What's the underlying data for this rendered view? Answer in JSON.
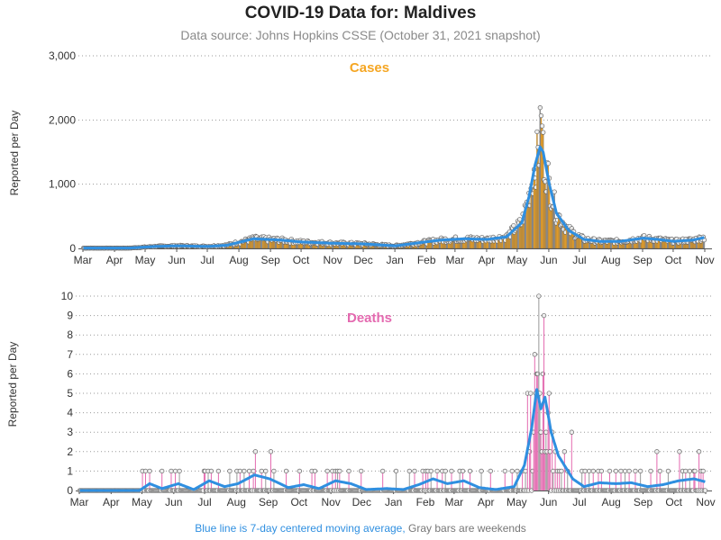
{
  "title": "COVID-19 Data for: Maldives",
  "subtitle": "Data source: Johns Hopkins CSSE (October 31, 2021 snapshot)",
  "footnote": {
    "blue": "Blue line is 7-day centered moving average,",
    "gray": "Gray bars are weekends"
  },
  "colors": {
    "cases": "#f5a623",
    "deaths": "#e46ab0",
    "moving_average": "#2f8fe0",
    "weekend": "#999999",
    "grid": "#9a9a9a"
  },
  "chart_data": [
    {
      "type": "bar",
      "name": "cases",
      "title": "Cases",
      "ylabel": "Reported per Day",
      "ylim": [
        0,
        3000
      ],
      "yticks": [
        0,
        1000,
        2000,
        3000
      ],
      "ytick_labels": [
        "0",
        "1,000",
        "2,000",
        "3,000"
      ],
      "xtick_labels": [
        "Mar",
        "Apr",
        "May",
        "Jun",
        "Jul",
        "Aug",
        "Sep",
        "Oct",
        "Nov",
        "Dec",
        "Jan",
        "Feb",
        "Mar",
        "Apr",
        "May",
        "Jun",
        "Jul",
        "Aug",
        "Sep",
        "Oct",
        "Nov"
      ],
      "x_range": [
        "2020-03-01",
        "2021-10-31"
      ],
      "grid": "horizontal-dotted",
      "moving_average_anchors": [
        [
          "2020-03-01",
          5
        ],
        [
          "2020-04-15",
          5
        ],
        [
          "2020-05-10",
          30
        ],
        [
          "2020-06-01",
          40
        ],
        [
          "2020-07-01",
          30
        ],
        [
          "2020-07-20",
          50
        ],
        [
          "2020-08-15",
          150
        ],
        [
          "2020-09-10",
          130
        ],
        [
          "2020-10-01",
          100
        ],
        [
          "2020-11-01",
          80
        ],
        [
          "2020-12-01",
          70
        ],
        [
          "2021-01-01",
          40
        ],
        [
          "2021-01-25",
          90
        ],
        [
          "2021-02-15",
          130
        ],
        [
          "2021-03-10",
          150
        ],
        [
          "2021-04-01",
          140
        ],
        [
          "2021-04-20",
          180
        ],
        [
          "2021-05-05",
          400
        ],
        [
          "2021-05-12",
          800
        ],
        [
          "2021-05-18",
          1300
        ],
        [
          "2021-05-23",
          1580
        ],
        [
          "2021-05-26",
          1500
        ],
        [
          "2021-06-01",
          1000
        ],
        [
          "2021-06-08",
          550
        ],
        [
          "2021-06-20",
          280
        ],
        [
          "2021-07-05",
          140
        ],
        [
          "2021-07-20",
          110
        ],
        [
          "2021-08-10",
          110
        ],
        [
          "2021-09-01",
          160
        ],
        [
          "2021-09-15",
          140
        ],
        [
          "2021-10-01",
          110
        ],
        [
          "2021-10-20",
          130
        ],
        [
          "2021-10-31",
          170
        ]
      ]
    },
    {
      "type": "bar",
      "name": "deaths",
      "title": "Deaths",
      "ylabel": "Reported per Day",
      "ylim": [
        0,
        10
      ],
      "yticks": [
        0,
        1,
        2,
        3,
        4,
        5,
        6,
        7,
        8,
        9,
        10
      ],
      "ytick_labels": [
        "0",
        "1",
        "2",
        "3",
        "4",
        "5",
        "6",
        "7",
        "8",
        "9",
        "10"
      ],
      "xtick_labels": [
        "Mar",
        "Apr",
        "May",
        "Jun",
        "Jul",
        "Aug",
        "Sep",
        "Oct",
        "Nov",
        "Dec",
        "Jan",
        "Feb",
        "Mar",
        "Apr",
        "May",
        "Jun",
        "Jul",
        "Aug",
        "Sep",
        "Oct",
        "Nov"
      ],
      "x_range": [
        "2020-03-01",
        "2021-10-31"
      ],
      "grid": "horizontal-dotted",
      "daily_nonzero": [
        [
          "2020-05-01",
          1
        ],
        [
          "2020-05-04",
          1
        ],
        [
          "2020-05-08",
          1
        ],
        [
          "2020-05-20",
          1
        ],
        [
          "2020-05-29",
          1
        ],
        [
          "2020-06-02",
          1
        ],
        [
          "2020-06-06",
          1
        ],
        [
          "2020-06-30",
          1
        ],
        [
          "2020-07-01",
          1
        ],
        [
          "2020-07-04",
          1
        ],
        [
          "2020-07-07",
          1
        ],
        [
          "2020-07-14",
          1
        ],
        [
          "2020-07-25",
          1
        ],
        [
          "2020-08-01",
          1
        ],
        [
          "2020-08-04",
          1
        ],
        [
          "2020-08-08",
          1
        ],
        [
          "2020-08-13",
          1
        ],
        [
          "2020-08-17",
          1
        ],
        [
          "2020-08-19",
          2
        ],
        [
          "2020-08-25",
          1
        ],
        [
          "2020-08-29",
          1
        ],
        [
          "2020-09-03",
          2
        ],
        [
          "2020-09-06",
          1
        ],
        [
          "2020-09-18",
          1
        ],
        [
          "2020-10-01",
          1
        ],
        [
          "2020-10-13",
          1
        ],
        [
          "2020-10-16",
          1
        ],
        [
          "2020-10-28",
          1
        ],
        [
          "2020-11-02",
          1
        ],
        [
          "2020-11-05",
          1
        ],
        [
          "2020-11-07",
          1
        ],
        [
          "2020-11-09",
          1
        ],
        [
          "2020-11-18",
          1
        ],
        [
          "2020-11-30",
          1
        ],
        [
          "2020-12-21",
          1
        ],
        [
          "2021-01-03",
          1
        ],
        [
          "2021-01-16",
          1
        ],
        [
          "2021-01-21",
          1
        ],
        [
          "2021-01-29",
          1
        ],
        [
          "2021-02-01",
          1
        ],
        [
          "2021-02-03",
          1
        ],
        [
          "2021-02-06",
          1
        ],
        [
          "2021-02-12",
          1
        ],
        [
          "2021-02-17",
          1
        ],
        [
          "2021-02-20",
          1
        ],
        [
          "2021-02-26",
          1
        ],
        [
          "2021-03-06",
          1
        ],
        [
          "2021-03-09",
          1
        ],
        [
          "2021-03-16",
          1
        ],
        [
          "2021-03-27",
          1
        ],
        [
          "2021-04-05",
          1
        ],
        [
          "2021-04-19",
          1
        ],
        [
          "2021-04-26",
          1
        ],
        [
          "2021-05-01",
          1
        ],
        [
          "2021-05-06",
          1
        ],
        [
          "2021-05-09",
          1
        ],
        [
          "2021-05-11",
          5
        ],
        [
          "2021-05-13",
          2
        ],
        [
          "2021-05-14",
          5
        ],
        [
          "2021-05-16",
          1
        ],
        [
          "2021-05-17",
          3
        ],
        [
          "2021-05-18",
          7
        ],
        [
          "2021-05-19",
          5
        ],
        [
          "2021-05-20",
          6
        ],
        [
          "2021-05-21",
          6
        ],
        [
          "2021-05-22",
          10
        ],
        [
          "2021-05-23",
          5
        ],
        [
          "2021-05-24",
          3
        ],
        [
          "2021-05-25",
          2
        ],
        [
          "2021-05-26",
          6
        ],
        [
          "2021-05-27",
          9
        ],
        [
          "2021-05-28",
          2
        ],
        [
          "2021-05-29",
          3
        ],
        [
          "2021-05-30",
          2
        ],
        [
          "2021-05-31",
          4
        ],
        [
          "2021-06-01",
          5
        ],
        [
          "2021-06-02",
          2
        ],
        [
          "2021-06-04",
          3
        ],
        [
          "2021-06-05",
          1
        ],
        [
          "2021-06-07",
          2
        ],
        [
          "2021-06-09",
          1
        ],
        [
          "2021-06-11",
          1
        ],
        [
          "2021-06-13",
          1
        ],
        [
          "2021-06-16",
          2
        ],
        [
          "2021-06-19",
          1
        ],
        [
          "2021-06-23",
          3
        ],
        [
          "2021-07-03",
          1
        ],
        [
          "2021-07-06",
          1
        ],
        [
          "2021-07-10",
          1
        ],
        [
          "2021-07-14",
          1
        ],
        [
          "2021-07-19",
          1
        ],
        [
          "2021-07-22",
          1
        ],
        [
          "2021-07-30",
          1
        ],
        [
          "2021-08-05",
          1
        ],
        [
          "2021-08-10",
          1
        ],
        [
          "2021-08-14",
          1
        ],
        [
          "2021-08-18",
          1
        ],
        [
          "2021-08-24",
          1
        ],
        [
          "2021-08-29",
          1
        ],
        [
          "2021-09-08",
          1
        ],
        [
          "2021-09-14",
          2
        ],
        [
          "2021-09-17",
          1
        ],
        [
          "2021-09-25",
          1
        ],
        [
          "2021-10-06",
          2
        ],
        [
          "2021-10-09",
          1
        ],
        [
          "2021-10-12",
          1
        ],
        [
          "2021-10-16",
          1
        ],
        [
          "2021-10-20",
          1
        ],
        [
          "2021-10-21",
          1
        ],
        [
          "2021-10-25",
          2
        ],
        [
          "2021-10-27",
          1
        ],
        [
          "2021-10-29",
          1
        ]
      ],
      "moving_average_anchors": [
        [
          "2020-03-01",
          0
        ],
        [
          "2020-04-28",
          0
        ],
        [
          "2020-05-08",
          0.35
        ],
        [
          "2020-05-20",
          0.1
        ],
        [
          "2020-06-05",
          0.35
        ],
        [
          "2020-06-20",
          0.05
        ],
        [
          "2020-07-05",
          0.5
        ],
        [
          "2020-07-20",
          0.2
        ],
        [
          "2020-08-02",
          0.35
        ],
        [
          "2020-08-18",
          0.8
        ],
        [
          "2020-09-02",
          0.6
        ],
        [
          "2020-09-20",
          0.15
        ],
        [
          "2020-10-05",
          0.3
        ],
        [
          "2020-10-20",
          0.1
        ],
        [
          "2020-11-05",
          0.5
        ],
        [
          "2020-11-20",
          0.35
        ],
        [
          "2020-12-05",
          0.05
        ],
        [
          "2020-12-25",
          0.1
        ],
        [
          "2021-01-10",
          0.05
        ],
        [
          "2021-01-25",
          0.3
        ],
        [
          "2021-02-08",
          0.6
        ],
        [
          "2021-02-22",
          0.35
        ],
        [
          "2021-03-10",
          0.5
        ],
        [
          "2021-03-25",
          0.15
        ],
        [
          "2021-04-10",
          0.05
        ],
        [
          "2021-04-28",
          0.2
        ],
        [
          "2021-05-08",
          1.3
        ],
        [
          "2021-05-15",
          3.2
        ],
        [
          "2021-05-20",
          5.2
        ],
        [
          "2021-05-24",
          4.2
        ],
        [
          "2021-05-28",
          4.8
        ],
        [
          "2021-06-03",
          3.0
        ],
        [
          "2021-06-10",
          1.8
        ],
        [
          "2021-06-17",
          1.2
        ],
        [
          "2021-06-24",
          0.6
        ],
        [
          "2021-07-05",
          0.2
        ],
        [
          "2021-07-20",
          0.4
        ],
        [
          "2021-08-05",
          0.35
        ],
        [
          "2021-08-20",
          0.4
        ],
        [
          "2021-09-05",
          0.2
        ],
        [
          "2021-09-20",
          0.3
        ],
        [
          "2021-10-05",
          0.5
        ],
        [
          "2021-10-20",
          0.6
        ],
        [
          "2021-10-31",
          0.45
        ]
      ]
    }
  ]
}
